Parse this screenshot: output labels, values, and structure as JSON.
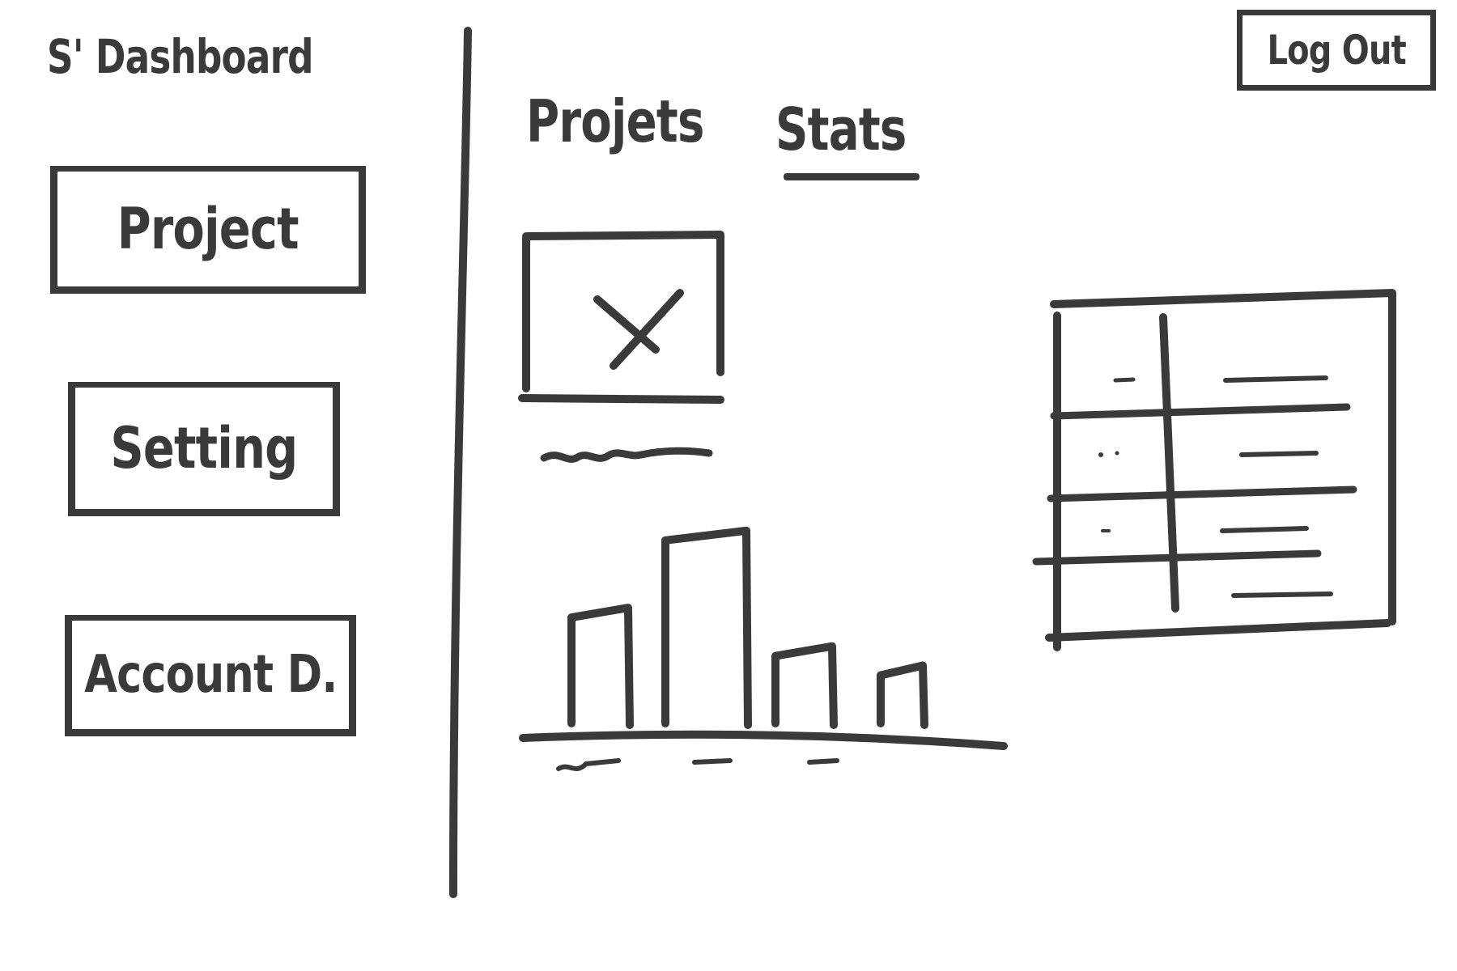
{
  "header": {
    "app_title": "S' Dashboard",
    "logout_label": "Log Out"
  },
  "sidebar": {
    "items": [
      {
        "label": "Project"
      },
      {
        "label": "Setting"
      },
      {
        "label": "Account D."
      }
    ]
  },
  "main": {
    "tabs": [
      {
        "label": "Projets"
      },
      {
        "label": "Stats",
        "active": true
      }
    ],
    "image_placeholder_icon": "image-placeholder-icon",
    "image_caption_icon": "squiggle-caption-icon"
  },
  "chart_data": {
    "type": "bar",
    "categories": [
      "",
      "",
      "",
      ""
    ],
    "values": [
      6,
      10,
      4,
      3
    ],
    "ylim": [
      0,
      11
    ],
    "grid": false,
    "legend": "none"
  },
  "table_data": {
    "type": "table",
    "columns": 2,
    "rows": 5
  },
  "colors": {
    "ink": "#3a3a3a",
    "background": "#ffffff"
  }
}
